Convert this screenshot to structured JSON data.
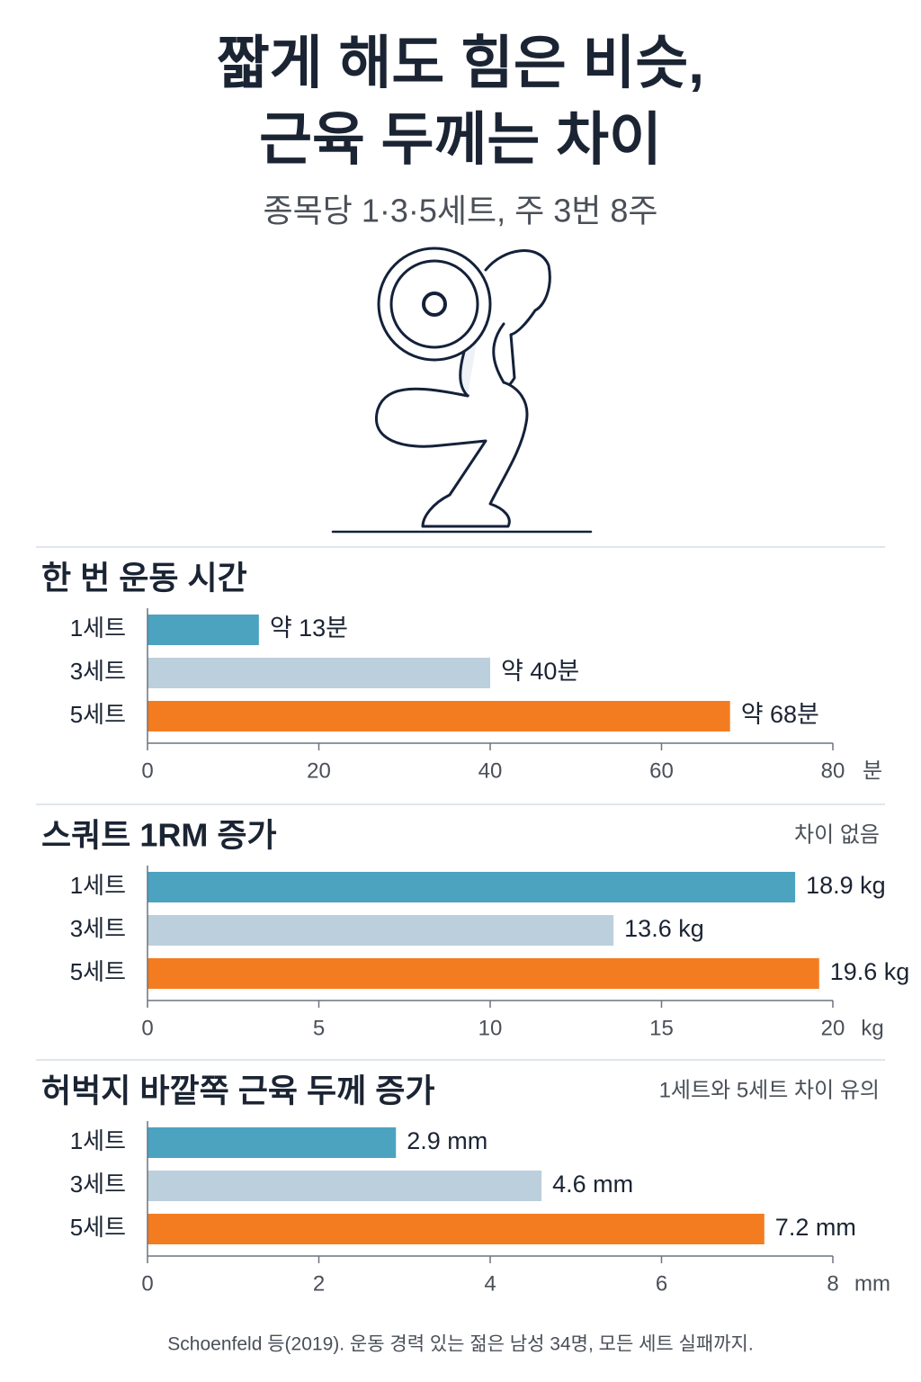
{
  "header": {
    "title_lines": [
      "짧게 해도 힘은 비슷,",
      "근육 두께는 차이"
    ],
    "subtitle": "종목당 1·3·5세트, 주 3번 8주"
  },
  "chart_data": [
    {
      "type": "bar",
      "orientation": "horizontal",
      "title": "한 번 운동 시간",
      "categories": [
        "1세트",
        "3세트",
        "5세트"
      ],
      "values": [
        13,
        40,
        68
      ],
      "value_labels": [
        "약 13분",
        "약 40분",
        "약 68분"
      ],
      "colors": [
        "#4ba3c0",
        "#bccfdc",
        "#f47c20"
      ],
      "xlim": [
        0,
        80
      ],
      "xticks": [
        0,
        20,
        40,
        60,
        80
      ],
      "x_label": "분"
    },
    {
      "type": "bar",
      "orientation": "horizontal",
      "title": "스쿼트 1RM 증가",
      "note": "차이 없음",
      "categories": [
        "1세트",
        "3세트",
        "5세트"
      ],
      "values": [
        18.9,
        13.6,
        19.6
      ],
      "value_labels": [
        "18.9 kg",
        "13.6 kg",
        "19.6 kg"
      ],
      "colors": [
        "#4ba3c0",
        "#bccfdc",
        "#f47c20"
      ],
      "xlim": [
        0,
        20
      ],
      "xticks": [
        0,
        5,
        10,
        15,
        20
      ],
      "x_label": "kg"
    },
    {
      "type": "bar",
      "orientation": "horizontal",
      "title": "허벅지 바깥쪽 근육 두께 증가",
      "note": "1세트와 5세트 차이 유의",
      "categories": [
        "1세트",
        "3세트",
        "5세트"
      ],
      "values": [
        2.9,
        4.6,
        7.2
      ],
      "value_labels": [
        "2.9 mm",
        "4.6 mm",
        "7.2 mm"
      ],
      "colors": [
        "#4ba3c0",
        "#bccfdc",
        "#f47c20"
      ],
      "xlim": [
        0,
        8
      ],
      "xticks": [
        0,
        2,
        4,
        6,
        8
      ],
      "x_label": "mm"
    }
  ],
  "footnote": "Schoenfeld 등(2019). 운동 경력 있는 젊은 남성 34명, 모든 세트 실패까지."
}
